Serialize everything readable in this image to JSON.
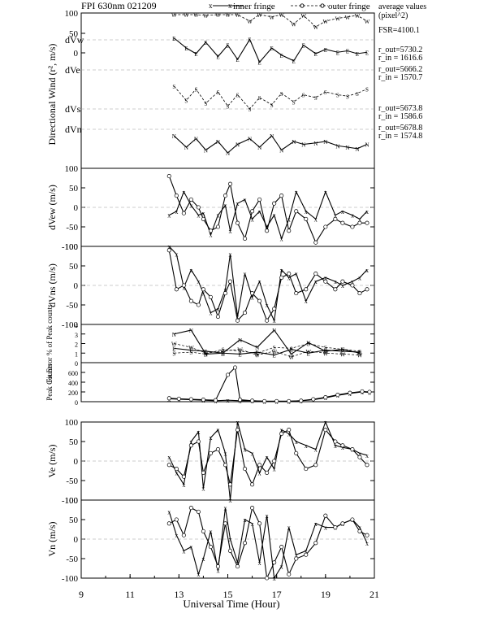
{
  "header": {
    "title": "FPI 630nm 021209",
    "legend_inner": "inner fringe",
    "legend_outer": "outer fringe",
    "avg_title": "average values",
    "avg_unit": "(pixel^2)",
    "fsr": "FSR=4100.1",
    "radii": [
      {
        "r_out": "r_out=5730.2",
        "r_in": "r_in = 1616.6"
      },
      {
        "r_out": "r_out=5666.2",
        "r_in": "r_in = 1570.7"
      },
      {
        "r_out": "r_out=5673.8",
        "r_in": "r_in = 1586.6"
      },
      {
        "r_out": "r_out=5678.8",
        "r_in": "r_in = 1574.8"
      }
    ]
  },
  "chart_data": {
    "type": "line",
    "x_axis": {
      "label": "Universal Time (Hour)",
      "xlim": [
        9,
        21
      ],
      "ticks": [
        "9",
        "11",
        "13",
        "15",
        "17",
        "19",
        "21"
      ]
    },
    "panels": [
      {
        "id": "directional",
        "ylabel": "Directional Wind  (r², m/s)",
        "row_labels": [
          "dVw",
          "dVe",
          "dVs",
          "dVn"
        ],
        "yticks": [
          "100",
          "50",
          "0"
        ],
        "series": [
          {
            "name": "W",
            "x": [
              12.8,
              13.3,
              13.7,
              14.1,
              14.6,
              15.0,
              15.4,
              15.9,
              16.3,
              16.8,
              17.2,
              17.7,
              18.1,
              18.6,
              19.0,
              19.5,
              19.9,
              20.3,
              20.7
            ],
            "y": [
              150,
              85,
              100,
              60,
              100,
              75,
              120,
              40,
              110,
              55,
              95,
              30,
              60,
              20,
              40,
              50,
              55,
              60,
              40
            ]
          },
          {
            "name": "E",
            "x": [
              12.8,
              13.3,
              13.7,
              14.1,
              14.6,
              15.0,
              15.4,
              15.9,
              16.3,
              16.8,
              17.2,
              17.7,
              18.1,
              18.6,
              19.0,
              19.5,
              19.9,
              20.3,
              20.7
            ],
            "y": [
              95,
              60,
              40,
              80,
              30,
              70,
              20,
              90,
              10,
              60,
              35,
              15,
              70,
              40,
              55,
              45,
              50,
              40,
              45
            ]
          },
          {
            "name": "S",
            "x": [
              12.8,
              13.3,
              13.7,
              14.1,
              14.6,
              15.0,
              15.4,
              15.9,
              16.3,
              16.8,
              17.2,
              17.7,
              18.1,
              18.6,
              19.0,
              19.5,
              19.9,
              20.3,
              20.7
            ],
            "y": [
              40,
              -10,
              30,
              -20,
              20,
              -30,
              10,
              -40,
              0,
              -25,
              15,
              -15,
              10,
              0,
              20,
              10,
              5,
              15,
              30
            ]
          },
          {
            "name": "N",
            "x": [
              12.8,
              13.3,
              13.7,
              14.1,
              14.6,
              15.0,
              15.4,
              15.9,
              16.3,
              16.8,
              17.2,
              17.7,
              18.1,
              18.6,
              19.0,
              19.5,
              19.9,
              20.3,
              20.7
            ],
            "y": [
              -20,
              -60,
              -30,
              -70,
              -40,
              -80,
              -50,
              -30,
              -60,
              -20,
              -70,
              -40,
              -50,
              -45,
              -40,
              -55,
              -60,
              -65,
              -50
            ]
          }
        ]
      },
      {
        "id": "dvew",
        "ylabel": "dVew (m/s)",
        "ylim": [
          -100,
          100
        ],
        "yticks": [
          "100",
          "50",
          "0",
          "-50",
          "-100"
        ],
        "series": [
          {
            "name": "inner fringe",
            "x": [
              12.6,
              12.9,
              13.2,
              13.5,
              13.8,
              14.0,
              14.3,
              14.6,
              14.9,
              15.1,
              15.4,
              15.7,
              16.0,
              16.3,
              16.6,
              16.9,
              17.2,
              17.5,
              17.8,
              18.2,
              18.6,
              19.0,
              19.4,
              19.7,
              20.1,
              20.4,
              20.7
            ],
            "y": [
              -20,
              -10,
              40,
              5,
              -20,
              -15,
              -70,
              -20,
              5,
              -60,
              10,
              20,
              -30,
              -10,
              -50,
              -20,
              -80,
              -30,
              40,
              -10,
              -30,
              40,
              -20,
              -10,
              -20,
              -30,
              -10
            ]
          },
          {
            "name": "outer fringe",
            "x": [
              12.6,
              12.9,
              13.2,
              13.5,
              13.8,
              14.0,
              14.3,
              14.6,
              14.9,
              15.1,
              15.4,
              15.7,
              16.0,
              16.3,
              16.6,
              16.9,
              17.2,
              17.5,
              17.8,
              18.2,
              18.6,
              19.0,
              19.4,
              19.7,
              20.1,
              20.4,
              20.7
            ],
            "y": [
              80,
              30,
              -15,
              20,
              0,
              -30,
              -60,
              -50,
              30,
              60,
              -40,
              -80,
              -10,
              20,
              -60,
              10,
              30,
              -60,
              -10,
              -30,
              -90,
              -50,
              -30,
              -40,
              -50,
              -40,
              -40
            ]
          }
        ]
      },
      {
        "id": "dvns",
        "ylabel": "dVns (m/s)",
        "ylim": [
          -100,
          100
        ],
        "yticks": [
          "100",
          "50",
          "0",
          "-50",
          "-100"
        ],
        "series": [
          {
            "name": "inner fringe",
            "x": [
              12.6,
              12.9,
              13.2,
              13.5,
              13.8,
              14.0,
              14.3,
              14.6,
              14.9,
              15.1,
              15.4,
              15.7,
              16.0,
              16.3,
              16.6,
              16.9,
              17.2,
              17.5,
              17.8,
              18.2,
              18.6,
              19.0,
              19.4,
              19.7,
              20.1,
              20.4,
              20.7
            ],
            "y": [
              100,
              80,
              -5,
              40,
              10,
              -20,
              -70,
              -60,
              -10,
              80,
              -80,
              30,
              -30,
              10,
              -50,
              -90,
              40,
              20,
              30,
              -40,
              10,
              20,
              10,
              0,
              10,
              20,
              40
            ]
          },
          {
            "name": "outer fringe",
            "x": [
              12.6,
              12.9,
              13.2,
              13.5,
              13.8,
              14.0,
              14.3,
              14.6,
              14.9,
              15.1,
              15.4,
              15.7,
              16.0,
              16.3,
              16.6,
              16.9,
              17.2,
              17.5,
              17.8,
              18.2,
              18.6,
              19.0,
              19.4,
              19.7,
              20.1,
              20.4,
              20.7
            ],
            "y": [
              90,
              -10,
              0,
              -40,
              -50,
              -10,
              -30,
              -80,
              -20,
              10,
              -90,
              -70,
              -20,
              -40,
              -90,
              -60,
              20,
              30,
              -20,
              -10,
              30,
              10,
              -10,
              10,
              0,
              -20,
              -10
            ]
          }
        ]
      },
      {
        "id": "fit_error",
        "ylabel": "Fit Error % of Peak counts",
        "ylim": [
          0,
          4
        ],
        "yticks": [
          "4",
          "3",
          "2",
          "1",
          "0"
        ],
        "series": [
          {
            "name": "W",
            "x": [
              12.8,
              13.5,
              14.1,
              14.8,
              15.5,
              16.2,
              16.9,
              17.6,
              18.3,
              19.0,
              19.7,
              20.4
            ],
            "y": [
              2.0,
              1.6,
              1.0,
              1.2,
              1.4,
              0.8,
              1.2,
              0.6,
              1.2,
              1.0,
              0.9,
              0.8
            ]
          },
          {
            "name": "E",
            "x": [
              12.8,
              13.5,
              14.1,
              14.8,
              15.5,
              16.2,
              16.9,
              17.6,
              18.3,
              19.0,
              19.7,
              20.4
            ],
            "y": [
              1.5,
              1.3,
              1.2,
              1.0,
              0.9,
              1.1,
              0.8,
              1.4,
              1.0,
              1.3,
              1.2,
              1.1
            ]
          },
          {
            "name": "S",
            "x": [
              12.8,
              13.5,
              14.1,
              14.8,
              15.5,
              16.2,
              16.9,
              17.6,
              18.3,
              19.0,
              19.7,
              20.4
            ],
            "y": [
              1.0,
              1.1,
              0.9,
              1.4,
              1.2,
              1.0,
              1.6,
              1.5,
              2.0,
              1.6,
              1.4,
              1.2
            ]
          },
          {
            "name": "N",
            "x": [
              12.8,
              13.5,
              14.1,
              14.8,
              15.5,
              16.2,
              16.9,
              17.6,
              18.3,
              19.0,
              19.7,
              20.4
            ],
            "y": [
              3.0,
              3.4,
              0.9,
              1.0,
              2.4,
              1.6,
              3.4,
              0.9,
              2.1,
              1.2,
              1.4,
              1.0
            ]
          }
        ]
      },
      {
        "id": "peak",
        "ylabel": "Peak Counts",
        "ylim": [
          0,
          800
        ],
        "yticks": [
          "600",
          "400",
          "200",
          "0"
        ],
        "series": [
          {
            "name": "inner fringe",
            "x": [
              12.6,
              13.0,
              13.5,
              14.0,
              14.5,
              15.0,
              15.5,
              16.0,
              16.5,
              17.0,
              17.5,
              18.0,
              18.5,
              19.0,
              19.5,
              20.0,
              20.5,
              20.8
            ],
            "y": [
              60,
              50,
              40,
              30,
              20,
              30,
              20,
              20,
              10,
              10,
              10,
              20,
              40,
              80,
              130,
              170,
              200,
              190
            ]
          },
          {
            "name": "outer fringe",
            "x": [
              12.6,
              13.0,
              13.5,
              14.0,
              14.5,
              15.0,
              15.3,
              15.5,
              16.0,
              16.5,
              17.0,
              17.5,
              18.0,
              18.5,
              19.0,
              19.5,
              20.0,
              20.5,
              20.8
            ],
            "y": [
              70,
              60,
              50,
              40,
              30,
              550,
              700,
              40,
              20,
              10,
              10,
              10,
              20,
              50,
              90,
              140,
              180,
              210,
              200
            ]
          }
        ]
      },
      {
        "id": "ve",
        "ylabel": "Ve (m/s)",
        "ylim": [
          -100,
          100
        ],
        "yticks": [
          "100",
          "50",
          "0",
          "-50",
          "-100"
        ],
        "series": [
          {
            "name": "inner fringe",
            "x": [
              12.6,
              12.9,
              13.2,
              13.5,
              13.8,
              14.0,
              14.3,
              14.6,
              14.9,
              15.1,
              15.4,
              15.7,
              16.0,
              16.3,
              16.6,
              16.9,
              17.2,
              17.5,
              17.8,
              18.2,
              18.6,
              19.0,
              19.4,
              19.7,
              20.1,
              20.4,
              20.7
            ],
            "y": [
              10,
              -30,
              -60,
              50,
              75,
              -70,
              60,
              80,
              20,
              -100,
              100,
              30,
              20,
              -30,
              10,
              -20,
              80,
              70,
              50,
              40,
              30,
              100,
              40,
              35,
              30,
              20,
              15
            ]
          },
          {
            "name": "outer fringe",
            "x": [
              12.6,
              12.9,
              13.2,
              13.5,
              13.8,
              14.0,
              14.3,
              14.6,
              14.9,
              15.1,
              15.4,
              15.7,
              16.0,
              16.3,
              16.6,
              16.9,
              17.2,
              17.5,
              17.8,
              18.2,
              18.6,
              19.0,
              19.4,
              19.7,
              20.1,
              20.4,
              20.7
            ],
            "y": [
              -10,
              -20,
              -40,
              40,
              50,
              -30,
              20,
              30,
              -10,
              -60,
              80,
              -20,
              -60,
              -10,
              -30,
              0,
              70,
              80,
              20,
              -20,
              -10,
              80,
              50,
              40,
              30,
              10,
              -10
            ]
          }
        ]
      },
      {
        "id": "vn",
        "ylabel": "Vn (m/s)",
        "ylim": [
          -100,
          100
        ],
        "yticks": [
          "100",
          "50",
          "0",
          "-50",
          "-100"
        ],
        "series": [
          {
            "name": "inner fringe",
            "x": [
              12.6,
              12.9,
              13.2,
              13.5,
              13.8,
              14.0,
              14.3,
              14.6,
              14.9,
              15.1,
              15.4,
              15.7,
              16.0,
              16.3,
              16.6,
              16.9,
              17.2,
              17.5,
              17.8,
              18.2,
              18.6,
              19.0,
              19.4,
              19.7,
              20.1,
              20.4,
              20.7
            ],
            "y": [
              70,
              10,
              -30,
              -20,
              -90,
              -50,
              20,
              -80,
              80,
              0,
              -60,
              50,
              40,
              -60,
              60,
              -100,
              -70,
              30,
              -40,
              -30,
              40,
              30,
              30,
              40,
              50,
              30,
              -10
            ]
          },
          {
            "name": "outer fringe",
            "x": [
              12.6,
              12.9,
              13.2,
              13.5,
              13.8,
              14.0,
              14.3,
              14.6,
              14.9,
              15.1,
              15.4,
              15.7,
              16.0,
              16.3,
              16.6,
              16.9,
              17.2,
              17.5,
              17.8,
              18.2,
              18.6,
              19.0,
              19.4,
              19.7,
              20.1,
              20.4,
              20.7
            ],
            "y": [
              40,
              50,
              10,
              80,
              70,
              20,
              -20,
              -70,
              40,
              -30,
              -70,
              -10,
              80,
              40,
              -100,
              -60,
              -20,
              -90,
              -50,
              -40,
              -10,
              60,
              30,
              40,
              50,
              20,
              10
            ]
          }
        ]
      }
    ]
  }
}
